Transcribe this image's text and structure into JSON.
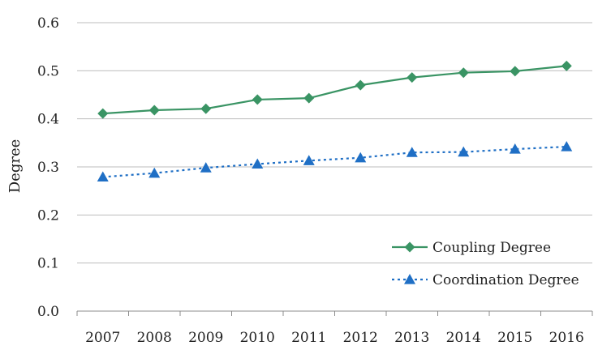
{
  "chart_data": {
    "type": "line",
    "title": "",
    "xlabel": "",
    "ylabel": "Degree",
    "categories": [
      "2007",
      "2008",
      "2009",
      "2010",
      "2011",
      "2012",
      "2013",
      "2014",
      "2015",
      "2016"
    ],
    "ylim": [
      0.0,
      0.6
    ],
    "yticks": [
      "0.0",
      "0.1",
      "0.2",
      "0.3",
      "0.4",
      "0.5",
      "0.6"
    ],
    "grid": true,
    "legend_position": "bottom-right",
    "series": [
      {
        "name": "Coupling Degree",
        "values": [
          0.411,
          0.418,
          0.421,
          0.44,
          0.443,
          0.47,
          0.486,
          0.496,
          0.499,
          0.51
        ],
        "color": "#3a9464",
        "marker": "diamond",
        "line_style": "solid"
      },
      {
        "name": "Coordination Degree",
        "values": [
          0.279,
          0.287,
          0.298,
          0.306,
          0.313,
          0.319,
          0.33,
          0.331,
          0.337,
          0.342
        ],
        "color": "#1f6fc5",
        "marker": "triangle",
        "line_style": "dotted"
      }
    ]
  }
}
